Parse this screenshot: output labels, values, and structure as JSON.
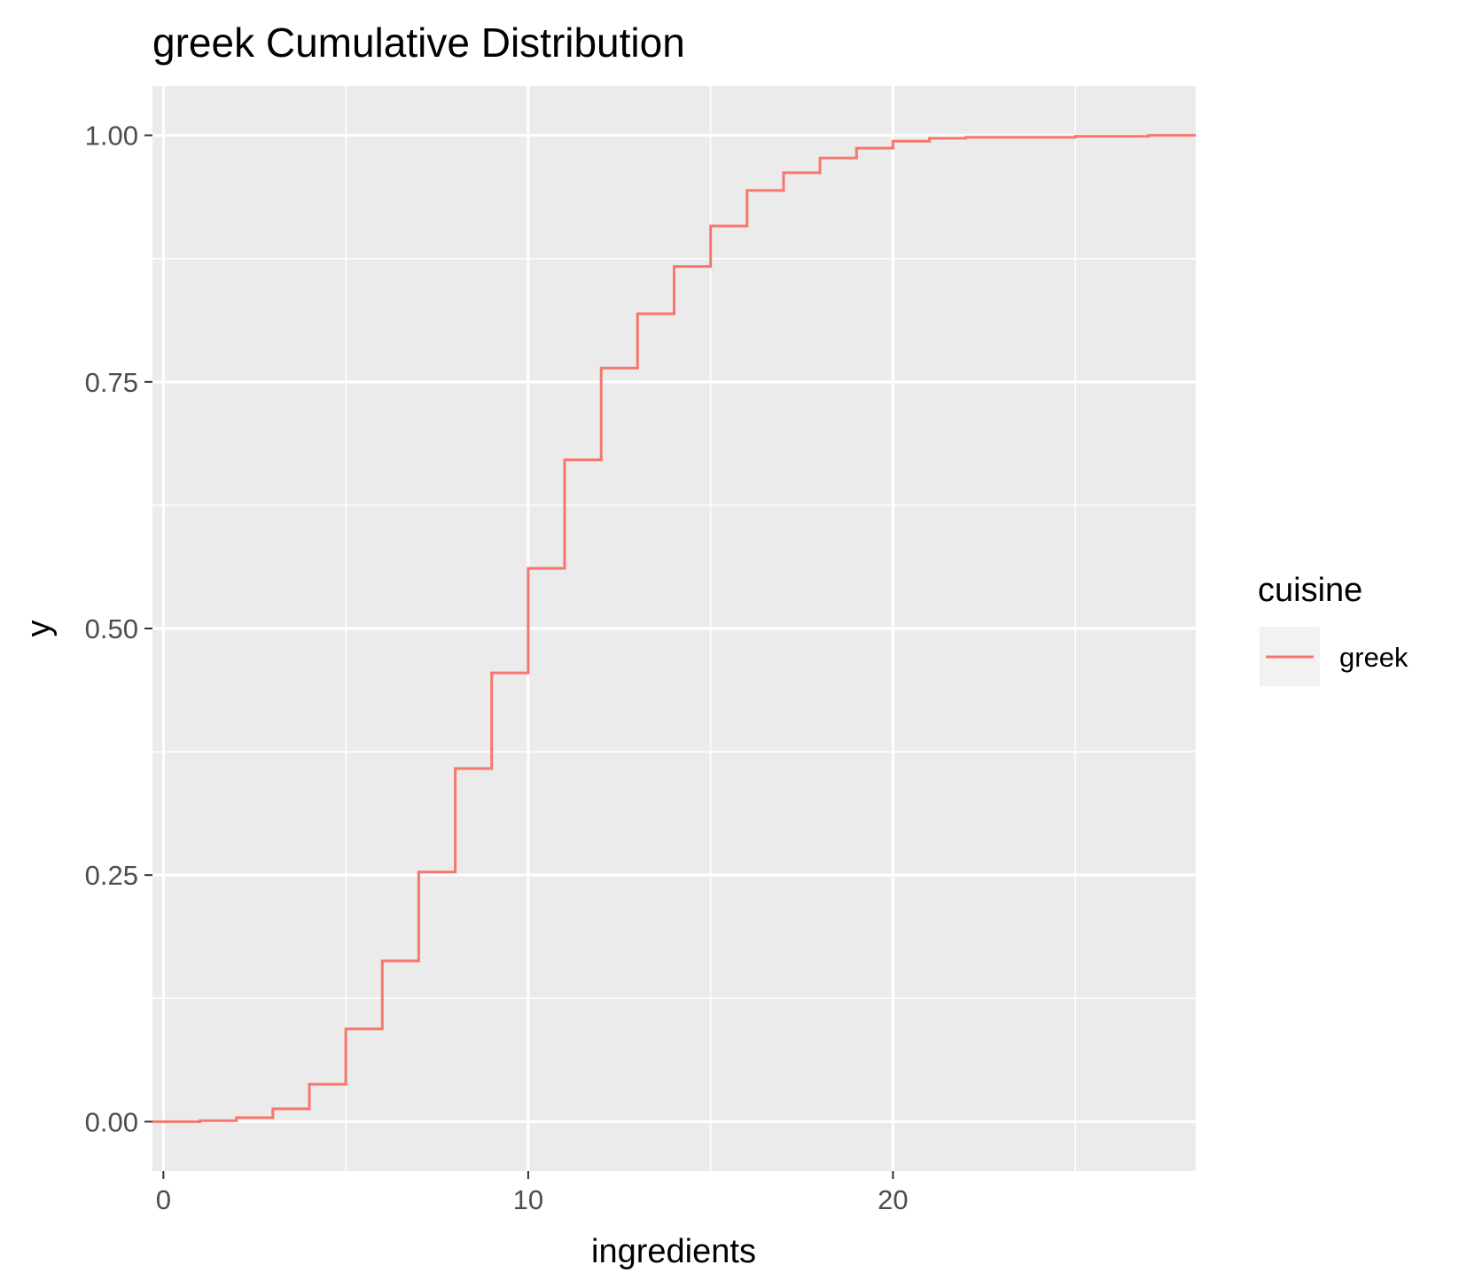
{
  "chart_data": {
    "type": "line",
    "step": true,
    "title": "greek Cumulative Distribution",
    "xlabel": "ingredients",
    "ylabel": "y",
    "xlim": [
      -0.3,
      28.3
    ],
    "ylim": [
      -0.05,
      1.05
    ],
    "x_ticks": [
      0,
      10,
      20
    ],
    "x_tick_labels": [
      "0",
      "10",
      "20"
    ],
    "y_ticks": [
      0,
      0.25,
      0.5,
      0.75,
      1.0
    ],
    "y_tick_labels": [
      "0.00",
      "0.25",
      "0.50",
      "0.75",
      "1.00"
    ],
    "grid": true,
    "legend": {
      "title": "cuisine",
      "placement": "right"
    },
    "series": [
      {
        "name": "greek",
        "color": "#F8766D",
        "x": [
          -0.3,
          1,
          2,
          3,
          4,
          5,
          6,
          7,
          8,
          9,
          10,
          11,
          12,
          13,
          14,
          15,
          16,
          17,
          18,
          19,
          20,
          21,
          22,
          25,
          27,
          28.3
        ],
        "y": [
          0,
          0.001,
          0.004,
          0.013,
          0.038,
          0.094,
          0.163,
          0.253,
          0.358,
          0.455,
          0.561,
          0.671,
          0.764,
          0.819,
          0.867,
          0.908,
          0.944,
          0.962,
          0.977,
          0.987,
          0.994,
          0.997,
          0.998,
          0.999,
          1.0,
          1.0
        ]
      }
    ]
  }
}
